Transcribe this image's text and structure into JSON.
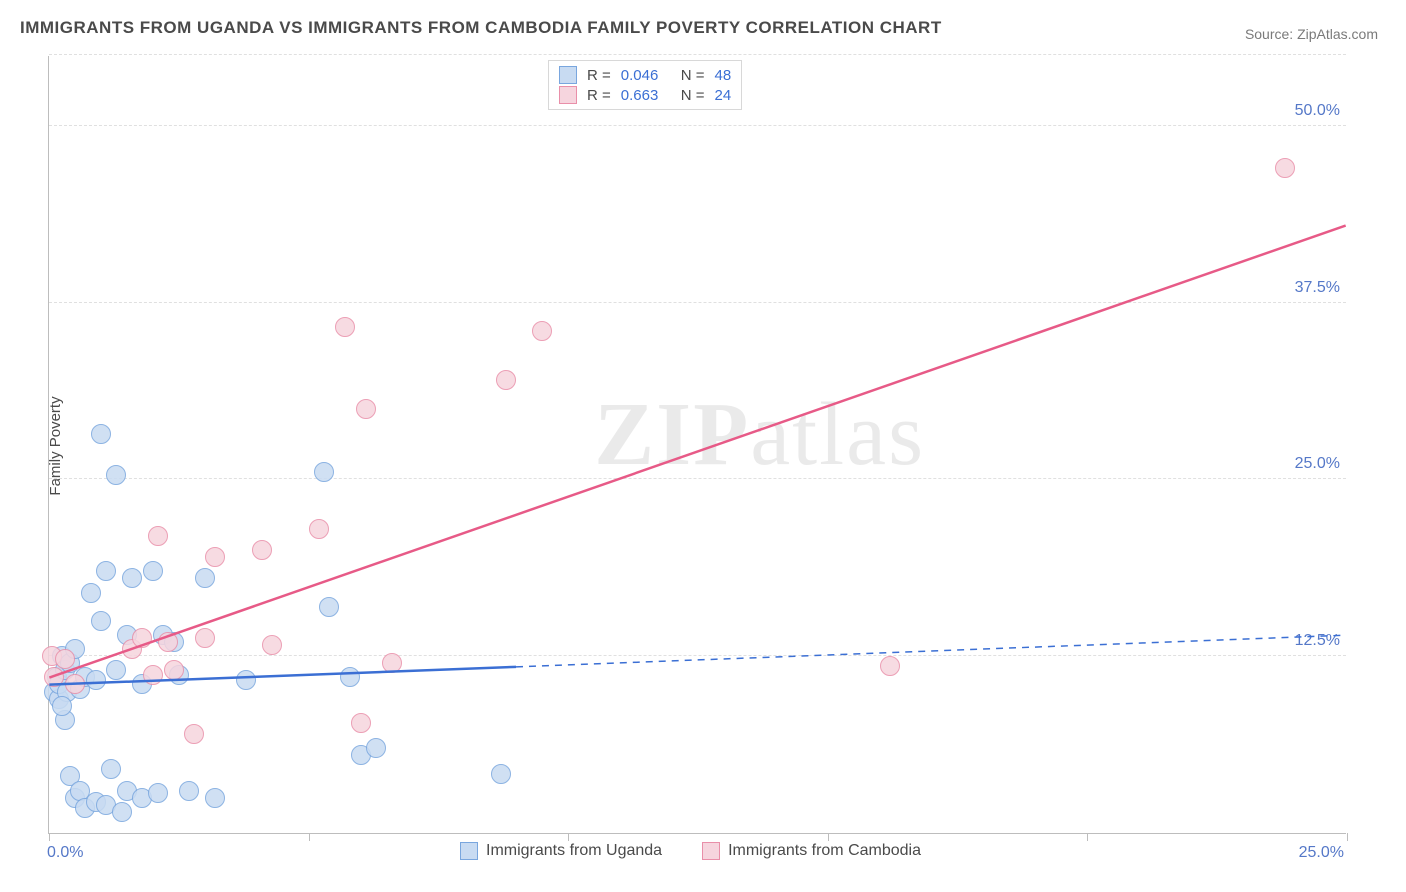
{
  "title": "IMMIGRANTS FROM UGANDA VS IMMIGRANTS FROM CAMBODIA FAMILY POVERTY CORRELATION CHART",
  "source": "Source: ZipAtlas.com",
  "ylabel": "Family Poverty",
  "watermark": "ZIPatlas",
  "chart": {
    "type": "scatter",
    "xlim": [
      0,
      25
    ],
    "ylim": [
      0,
      55
    ],
    "xtick_positions": [
      0,
      5,
      10,
      15,
      20,
      25
    ],
    "xtick_labels": [
      "0.0%",
      null,
      null,
      null,
      null,
      "25.0%"
    ],
    "ytick_positions": [
      12.5,
      25.0,
      37.5,
      50.0
    ],
    "ytick_labels": [
      "12.5%",
      "25.0%",
      "37.5%",
      "50.0%"
    ],
    "grid_y": [
      12.5,
      25.0,
      37.5,
      50.0,
      55.0
    ],
    "background_color": "#ffffff",
    "grid_color": "#e0e0e0",
    "axis_color": "#bdbdbd",
    "tick_label_color": "#5578c8",
    "point_radius": 10,
    "point_border_width": 1.5,
    "series": [
      {
        "name": "Immigrants from Uganda",
        "fill": "#c8dbf2",
        "stroke": "#79a6de",
        "trend_color": "#3b6fd4",
        "trend_solid_xmax": 9.0,
        "trend": {
          "y_at_xmin": 10.5,
          "y_at_xmax": 14.0
        },
        "points": [
          [
            0.1,
            10.0
          ],
          [
            0.15,
            11.0
          ],
          [
            0.2,
            9.5
          ],
          [
            0.2,
            10.5
          ],
          [
            0.25,
            12.5
          ],
          [
            0.3,
            8.0
          ],
          [
            0.3,
            11.5
          ],
          [
            0.35,
            10.0
          ],
          [
            0.4,
            4.0
          ],
          [
            0.4,
            12.0
          ],
          [
            0.5,
            2.5
          ],
          [
            0.5,
            13.0
          ],
          [
            0.6,
            3.0
          ],
          [
            0.6,
            10.2
          ],
          [
            0.7,
            1.8
          ],
          [
            0.7,
            11.0
          ],
          [
            0.8,
            17.0
          ],
          [
            0.9,
            2.2
          ],
          [
            0.9,
            10.8
          ],
          [
            1.0,
            28.2
          ],
          [
            1.0,
            15.0
          ],
          [
            1.1,
            2.0
          ],
          [
            1.1,
            18.5
          ],
          [
            1.2,
            4.5
          ],
          [
            1.3,
            25.3
          ],
          [
            1.3,
            11.5
          ],
          [
            1.4,
            1.5
          ],
          [
            1.5,
            14.0
          ],
          [
            1.5,
            3.0
          ],
          [
            1.6,
            18.0
          ],
          [
            1.8,
            10.5
          ],
          [
            1.8,
            2.5
          ],
          [
            2.0,
            18.5
          ],
          [
            2.1,
            2.8
          ],
          [
            2.2,
            14.0
          ],
          [
            2.4,
            13.5
          ],
          [
            2.5,
            11.2
          ],
          [
            2.7,
            3.0
          ],
          [
            3.0,
            18.0
          ],
          [
            3.2,
            2.5
          ],
          [
            3.8,
            10.8
          ],
          [
            5.3,
            25.5
          ],
          [
            5.4,
            16.0
          ],
          [
            5.8,
            11.0
          ],
          [
            6.0,
            5.5
          ],
          [
            6.3,
            6.0
          ],
          [
            8.7,
            4.2
          ],
          [
            0.25,
            9.0
          ]
        ]
      },
      {
        "name": "Immigrants from Cambodia",
        "fill": "#f6d5de",
        "stroke": "#e98fa9",
        "trend_color": "#e75a87",
        "trend_solid_xmax": 25.0,
        "trend": {
          "y_at_xmin": 11.0,
          "y_at_xmax": 43.0
        },
        "points": [
          [
            0.05,
            12.5
          ],
          [
            0.1,
            11.0
          ],
          [
            0.3,
            12.3
          ],
          [
            0.5,
            10.5
          ],
          [
            1.6,
            13.0
          ],
          [
            1.8,
            13.8
          ],
          [
            2.0,
            11.2
          ],
          [
            2.1,
            21.0
          ],
          [
            2.3,
            13.5
          ],
          [
            2.4,
            11.5
          ],
          [
            2.8,
            7.0
          ],
          [
            3.0,
            13.8
          ],
          [
            3.2,
            19.5
          ],
          [
            4.1,
            20.0
          ],
          [
            4.3,
            13.3
          ],
          [
            5.2,
            21.5
          ],
          [
            5.7,
            35.8
          ],
          [
            6.0,
            7.8
          ],
          [
            6.1,
            30.0
          ],
          [
            6.6,
            12.0
          ],
          [
            8.8,
            32.0
          ],
          [
            9.5,
            35.5
          ],
          [
            16.2,
            11.8
          ],
          [
            23.8,
            47.0
          ]
        ]
      }
    ]
  },
  "legend_top": {
    "rows": [
      {
        "swatch": 0,
        "r_label": "R =",
        "r_value": "0.046",
        "n_label": "N =",
        "n_value": "48"
      },
      {
        "swatch": 1,
        "r_label": "R =",
        "r_value": "0.663",
        "n_label": "N =",
        "n_value": "24"
      }
    ],
    "text_color": "#4a4a4a",
    "value_color": "#3b6fd4"
  },
  "legend_bottom": {
    "items": [
      {
        "swatch": 0,
        "label": "Immigrants from Uganda"
      },
      {
        "swatch": 1,
        "label": "Immigrants from Cambodia"
      }
    ]
  }
}
